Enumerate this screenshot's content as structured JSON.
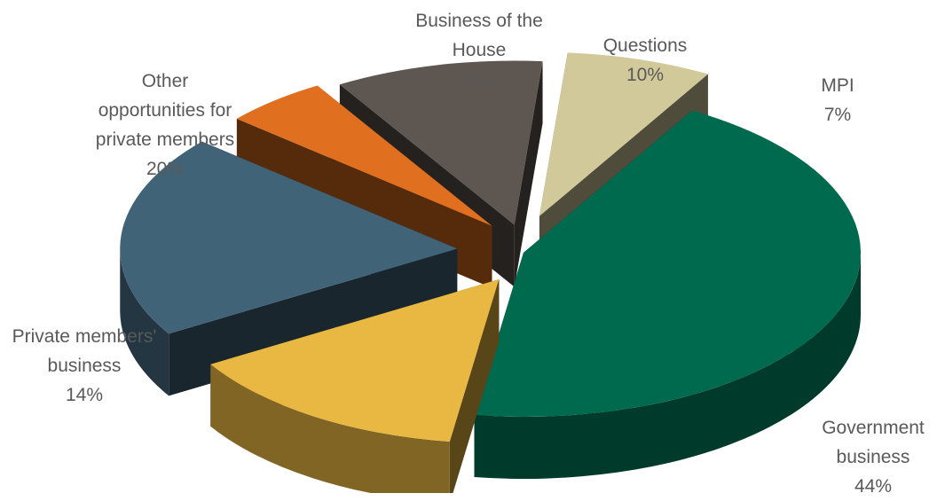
{
  "chart_data": {
    "type": "pie",
    "title": "",
    "slices": [
      {
        "name": "Government business",
        "label_lines": [
          "Government",
          "business"
        ],
        "value": 44,
        "value_label": "44%",
        "color": "#006A4E"
      },
      {
        "name": "Private members' business",
        "label_lines": [
          "Private members'",
          "business"
        ],
        "value": 14,
        "value_label": "14%",
        "color": "#E8B843"
      },
      {
        "name": "Other opportunities for private members",
        "label_lines": [
          "Other",
          "opportunities for",
          "private members"
        ],
        "value": 20,
        "value_label": "20%",
        "color": "#416378"
      },
      {
        "name": "Business of the House",
        "label_lines": [
          "Business of the",
          "House"
        ],
        "value": 5,
        "value_label": "5%",
        "color": "#E07020"
      },
      {
        "name": "Questions",
        "label_lines": [
          "Questions"
        ],
        "value": 10,
        "value_label": "10%",
        "color": "#5E5650"
      },
      {
        "name": "MPI",
        "label_lines": [
          "MPI"
        ],
        "value": 7,
        "value_label": "7%",
        "color": "#D2C99A"
      }
    ],
    "style": "3d-exploded",
    "legend": "none",
    "data_labels": "outside"
  }
}
